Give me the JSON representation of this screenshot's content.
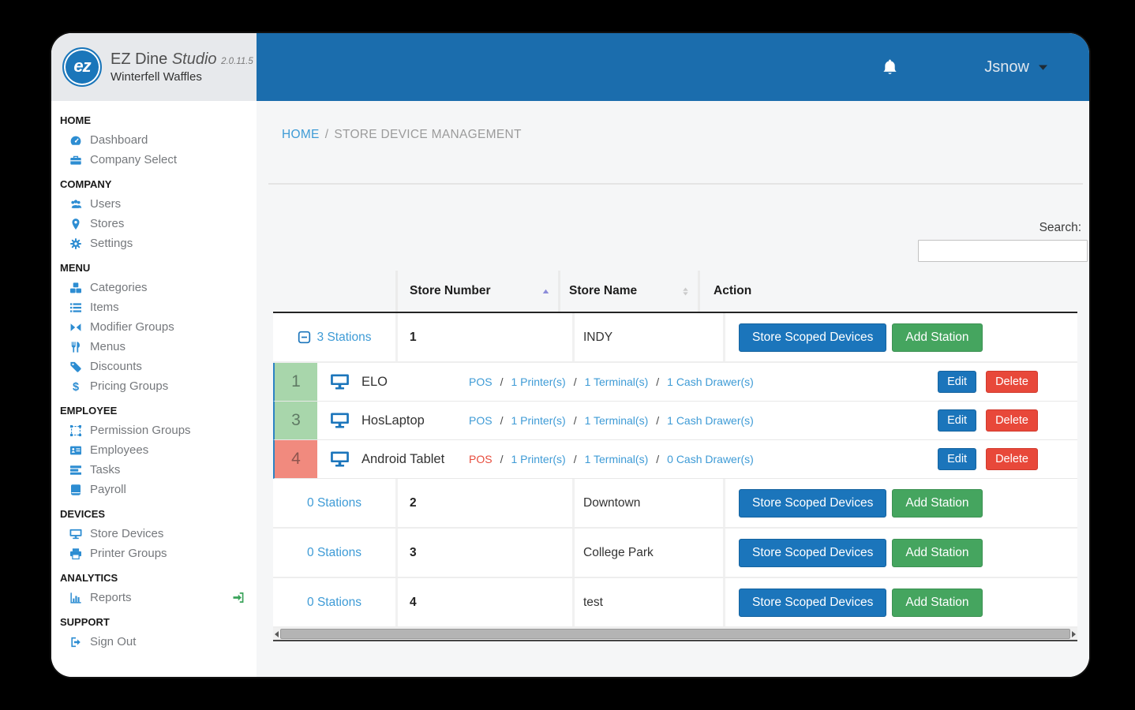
{
  "brand": {
    "logo": "ez",
    "name": "EZ Dine",
    "variant": "Studio",
    "version": "2.0.11.5",
    "company": "Winterfell Waffles"
  },
  "topbar": {
    "bell_icon": "bell-icon",
    "username": "Jsnow",
    "caret_icon": "caret-down-icon"
  },
  "sidebar": {
    "sections": [
      {
        "label": "HOME",
        "items": [
          {
            "icon": "dashboard-icon",
            "label": "Dashboard"
          },
          {
            "icon": "briefcase-icon",
            "label": "Company Select"
          }
        ]
      },
      {
        "label": "COMPANY",
        "items": [
          {
            "icon": "users-icon",
            "label": "Users"
          },
          {
            "icon": "map-pin-icon",
            "label": "Stores"
          },
          {
            "icon": "gear-icon",
            "label": "Settings"
          }
        ]
      },
      {
        "label": "MENU",
        "items": [
          {
            "icon": "cubes-icon",
            "label": "Categories"
          },
          {
            "icon": "list-icon",
            "label": "Items"
          },
          {
            "icon": "compress-icon",
            "label": "Modifier Groups"
          },
          {
            "icon": "cutlery-icon",
            "label": "Menus"
          },
          {
            "icon": "tag-icon",
            "label": "Discounts"
          },
          {
            "icon": "dollar-icon",
            "label": "Pricing Groups"
          }
        ]
      },
      {
        "label": "EMPLOYEE",
        "items": [
          {
            "icon": "object-group-icon",
            "label": "Permission Groups"
          },
          {
            "icon": "id-card-icon",
            "label": "Employees"
          },
          {
            "icon": "tasks-icon",
            "label": "Tasks"
          },
          {
            "icon": "book-icon",
            "label": "Payroll"
          }
        ]
      },
      {
        "label": "DEVICES",
        "items": [
          {
            "icon": "desktop-icon",
            "label": "Store Devices"
          },
          {
            "icon": "printer-icon",
            "label": "Printer Groups"
          }
        ]
      },
      {
        "label": "ANALYTICS",
        "items": [
          {
            "icon": "bar-chart-icon",
            "label": "Reports",
            "trailing_icon": "sign-in-icon"
          }
        ]
      },
      {
        "label": "SUPPORT",
        "items": [
          {
            "icon": "sign-out-icon",
            "label": "Sign Out"
          }
        ]
      }
    ]
  },
  "breadcrumb": {
    "home": "HOME",
    "separator": "/",
    "current": "STORE DEVICE MANAGEMENT"
  },
  "search": {
    "label": "Search:",
    "value": ""
  },
  "table": {
    "headers": {
      "store_number": "Store Number",
      "store_name": "Store Name",
      "action": "Action"
    },
    "sort": {
      "store_number_icon": "sort-asc-icon",
      "store_name_icon": "sort-both-icon"
    },
    "action_buttons": {
      "store_scoped": "Store Scoped Devices",
      "add_station": "Add Station"
    },
    "station_buttons": {
      "edit": "Edit",
      "delete": "Delete"
    },
    "link_separator": "/",
    "toggle_icon": "minus-square-icon",
    "device_icon": "monitor-icon",
    "rows": [
      {
        "stations": "3 Stations",
        "number": "1",
        "name": "INDY",
        "expanded": true
      },
      {
        "stations": "0 Stations",
        "number": "2",
        "name": "Downtown",
        "expanded": false
      },
      {
        "stations": "0 Stations",
        "number": "3",
        "name": "College Park",
        "expanded": false
      },
      {
        "stations": "0 Stations",
        "number": "4",
        "name": "test",
        "expanded": false
      }
    ],
    "stations": [
      {
        "id": "1",
        "status": "ok",
        "name": "ELO",
        "type": "POS",
        "type_alert": false,
        "links": [
          "1 Printer(s)",
          "1 Terminal(s)",
          "1 Cash Drawer(s)"
        ]
      },
      {
        "id": "3",
        "status": "ok",
        "name": "HosLaptop",
        "type": "POS",
        "type_alert": false,
        "links": [
          "1 Printer(s)",
          "1 Terminal(s)",
          "1 Cash Drawer(s)"
        ]
      },
      {
        "id": "4",
        "status": "error",
        "name": "Android Tablet",
        "type": "POS",
        "type_alert": true,
        "links": [
          "1 Printer(s)",
          "1 Terminal(s)",
          "0 Cash Drawer(s)"
        ]
      }
    ]
  },
  "colors": {
    "topbar": "#1b6dad",
    "primary": "#1b75bb",
    "success": "#45a55f",
    "danger": "#e8483a",
    "link": "#3e9bd6",
    "badge_green": "#a8d6ab",
    "badge_red": "#f18a7e"
  }
}
